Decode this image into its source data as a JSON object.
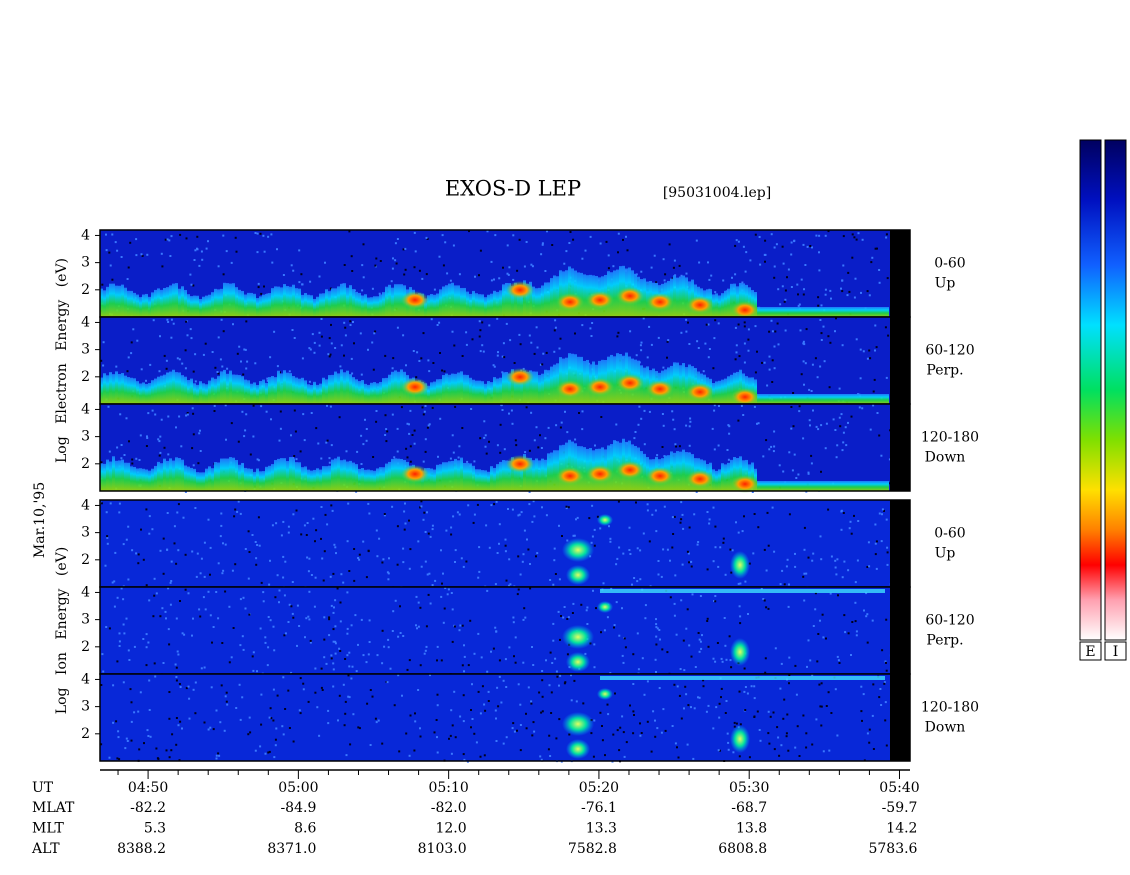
{
  "title": "EXOS-D LEP",
  "file": "[95031004.lep]",
  "date": "Mar.10,'95",
  "groups": [
    {
      "ylabel": "Log Electron Energy (eV)",
      "ylim": [
        1,
        4.2
      ],
      "yticks": [
        2,
        3,
        4
      ],
      "panels": [
        {
          "range": "0-60",
          "direction": "Up"
        },
        {
          "range": "60-120",
          "direction": "Perp."
        },
        {
          "range": "120-180",
          "direction": "Down"
        }
      ]
    },
    {
      "ylabel": "Log Ion Energy (eV)",
      "ylim": [
        1,
        4.2
      ],
      "yticks": [
        2,
        3,
        4
      ],
      "panels": [
        {
          "range": "0-60",
          "direction": "Up"
        },
        {
          "range": "60-120",
          "direction": "Perp."
        },
        {
          "range": "120-180",
          "direction": "Down"
        }
      ]
    }
  ],
  "time_axis": {
    "label": "UT",
    "xlim": [
      286.8,
      340.7
    ],
    "ticks": [
      {
        "value": 290,
        "label": "04:50"
      },
      {
        "value": 300,
        "label": "05:00"
      },
      {
        "value": 310,
        "label": "05:10"
      },
      {
        "value": 320,
        "label": "05:20"
      },
      {
        "value": 330,
        "label": "05:30"
      },
      {
        "value": 340,
        "label": "05:40"
      }
    ],
    "minor_ticks": [
      288,
      292,
      294,
      296,
      298,
      302,
      304,
      306,
      308,
      312,
      314,
      316,
      318,
      322,
      324,
      326,
      328,
      332,
      334,
      336,
      338
    ]
  },
  "orbit": [
    {
      "label": "MLAT",
      "values": [
        "-82.2",
        "-84.9",
        "-82.0",
        "-76.1",
        "-68.7",
        "-59.7"
      ]
    },
    {
      "label": "MLT",
      "values": [
        "5.3",
        "8.6",
        "12.0",
        "13.3",
        "13.8",
        "14.2"
      ]
    },
    {
      "label": "ALT",
      "values": [
        "8388.2",
        "8371.0",
        "8103.0",
        "7582.8",
        "6808.8",
        "5783.6"
      ]
    }
  ],
  "colorbars": [
    "E",
    "I"
  ]
}
